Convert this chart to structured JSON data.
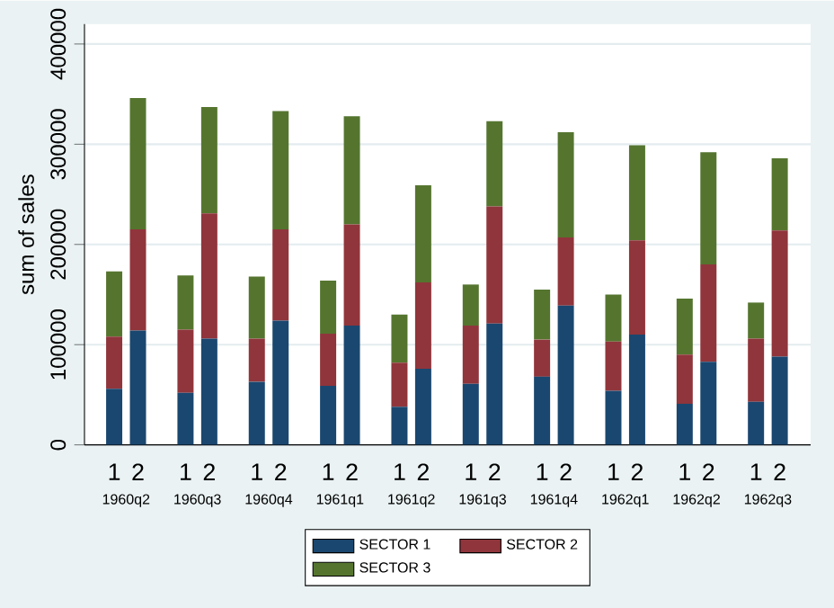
{
  "chart_data": {
    "type": "bar",
    "stacked": true,
    "ylabel": "sum of sales",
    "categories": [
      "1",
      "2",
      "1",
      "2",
      "1",
      "2",
      "1",
      "2",
      "1",
      "2",
      "1",
      "2",
      "1",
      "2",
      "1",
      "2",
      "1",
      "2",
      "1",
      "2"
    ],
    "series": [
      {
        "name": "SECTOR 1",
        "color": "#1a476f",
        "values": [
          56000,
          114000,
          52000,
          106000,
          63000,
          124000,
          59000,
          119000,
          38000,
          76000,
          61000,
          121000,
          68000,
          139000,
          54000,
          110000,
          41000,
          83000,
          43000,
          88000
        ]
      },
      {
        "name": "SECTOR 2",
        "color": "#90353b",
        "values": [
          52000,
          101000,
          63000,
          125000,
          43000,
          91000,
          52000,
          101000,
          44000,
          86000,
          58000,
          117000,
          37000,
          68000,
          49000,
          94000,
          49000,
          97000,
          63000,
          126000
        ]
      },
      {
        "name": "SECTOR 3",
        "color": "#55752f",
        "values": [
          65000,
          131000,
          54000,
          106000,
          62000,
          118000,
          53000,
          108000,
          48000,
          97000,
          41000,
          85000,
          50000,
          105000,
          47000,
          95000,
          56000,
          112000,
          36000,
          72000
        ]
      }
    ],
    "annotations": [
      "1960q2",
      "1960q3",
      "1960q4",
      "1961q1",
      "1961q2",
      "1961q3",
      "1961q4",
      "1962q1",
      "1962q2",
      "1962q3"
    ],
    "ylim": [
      0,
      420000
    ],
    "yticks": [
      0,
      100000,
      200000,
      300000,
      400000
    ],
    "grid": "y",
    "legend": "bottom"
  }
}
